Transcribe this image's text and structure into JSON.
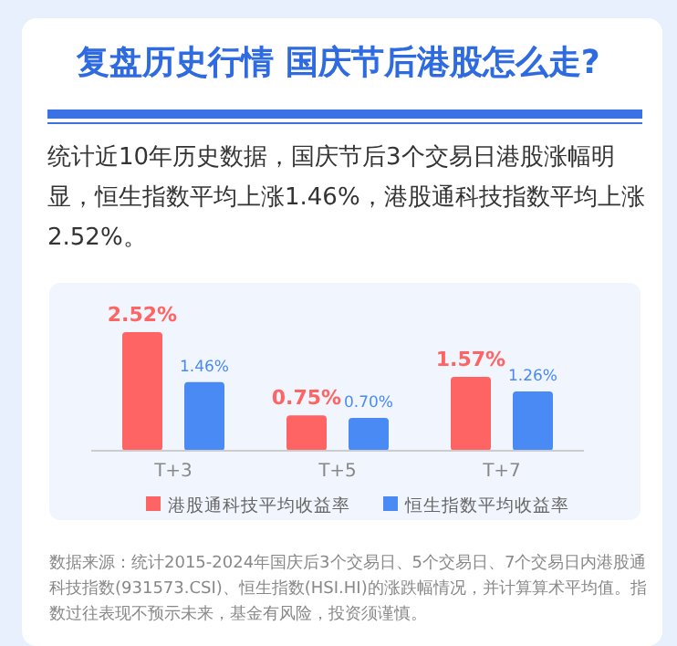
{
  "chart_data": {
    "type": "bar",
    "title": "复盘历史行情 国庆节后港股怎么走?",
    "subtitle": "统计近10年历史数据，国庆节后3个交易日港股涨幅明显，恒生指数平均上涨1.46%，港股通科技指数平均上涨2.52%。",
    "categories": [
      "T+3",
      "T+5",
      "T+7"
    ],
    "series": [
      {
        "name": "港股通科技平均收益率",
        "color": "#ff6464",
        "values": [
          2.52,
          0.75,
          1.57
        ],
        "value_labels": [
          "2.52%",
          "0.75%",
          "1.57%"
        ]
      },
      {
        "name": "恒生指数平均收益率",
        "color": "#4a8af5",
        "values": [
          1.46,
          0.7,
          1.26
        ],
        "value_labels": [
          "1.46%",
          "0.70%",
          "1.26%"
        ]
      }
    ],
    "legend": "bottom",
    "annotations": [
      "数据来源：统计2015-2024年国庆后3个交易日、5个交易日、7个交易日内港股通科技指数(931573.CSI)、恒生指数(HSI.HI)的涨跌幅情况，并计算算术平均值。指数过往表现不预示未来，基金有风险，投资须谨慎。"
    ]
  }
}
